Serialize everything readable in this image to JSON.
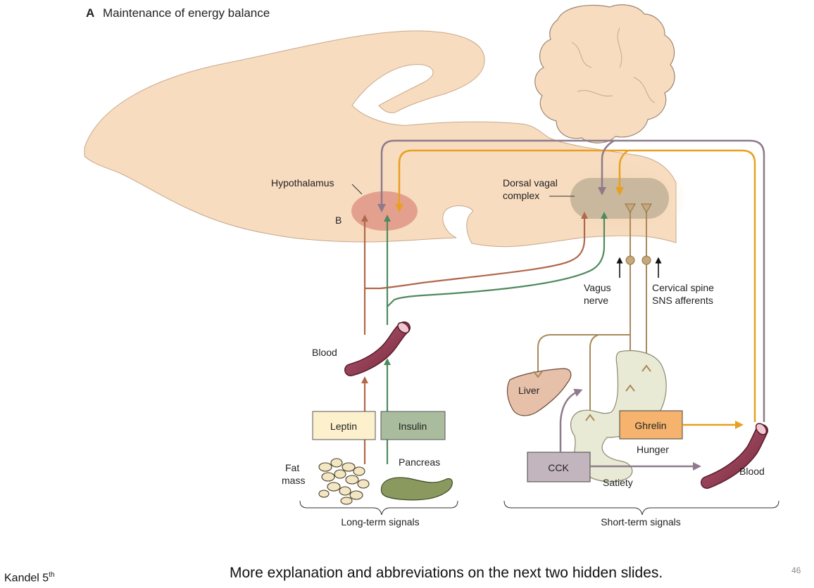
{
  "figure": {
    "panel_label": "A",
    "title": "Maintenance of energy balance",
    "labels": {
      "hypothalamus": "Hypothalamus",
      "b": "B",
      "dvc_line1": "Dorsal vagal",
      "dvc_line2": "complex",
      "vagus_line1": "Vagus",
      "vagus_line2": "nerve",
      "cervical_line1": "Cervical spine",
      "cervical_line2": "SNS afferents",
      "blood_left": "Blood",
      "blood_right": "Blood",
      "liver": "Liver",
      "leptin": "Leptin",
      "insulin": "Insulin",
      "fat_line1": "Fat",
      "fat_line2": "mass",
      "pancreas": "Pancreas",
      "ghrelin": "Ghrelin",
      "hunger": "Hunger",
      "cck": "CCK",
      "satiety": "Satiety",
      "long_term": "Long-term signals",
      "short_term": "Short-term signals"
    },
    "colors": {
      "brain": "#f7dcc0",
      "leptin_arrow": "#b0684a",
      "insulin_arrow": "#4e8a5e",
      "ghrelin_arrow": "#e8a020",
      "cck_arrow": "#8e7a8c",
      "nerve": "#a88a5a"
    }
  },
  "footer": {
    "citation": "Kandel 5",
    "citation_sup": "th",
    "note": "More explanation and abbreviations on the next two hidden slides.",
    "slide_number": "46"
  }
}
